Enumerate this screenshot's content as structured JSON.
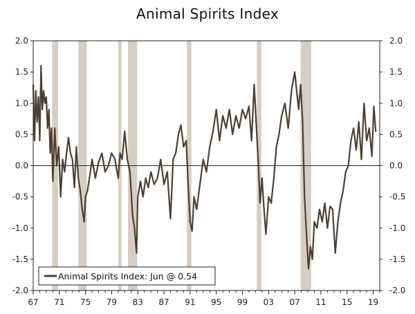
{
  "chart_data": {
    "type": "line",
    "title": "Animal Spirits Index",
    "xlabel": "",
    "ylabel": "",
    "xlim": [
      1967,
      2020
    ],
    "ylim": [
      -2.0,
      2.0
    ],
    "x_ticks": [
      "67",
      "71",
      "75",
      "79",
      "83",
      "87",
      "91",
      "95",
      "99",
      "03",
      "07",
      "11",
      "15",
      "19"
    ],
    "x_tick_years": [
      1967,
      1971,
      1975,
      1979,
      1983,
      1987,
      1991,
      1995,
      1999,
      2003,
      2007,
      2011,
      2015,
      2019
    ],
    "y_ticks": [
      "2.0",
      "1.5",
      "1.0",
      "0.5",
      "0.0",
      "-0.5",
      "-1.0",
      "-1.5",
      "-2.0"
    ],
    "y_tick_values": [
      2.0,
      1.5,
      1.0,
      0.5,
      0.0,
      -0.5,
      -1.0,
      -1.5,
      -2.0
    ],
    "grid": false,
    "zero_line": true,
    "legend_position": "bottom-left",
    "recession_color": "#d6cdc4",
    "line_color": "#4b3f34",
    "recessions": [
      {
        "start": 1969.9,
        "end": 1970.8
      },
      {
        "start": 1973.9,
        "end": 1975.2
      },
      {
        "start": 1980.0,
        "end": 1980.5
      },
      {
        "start": 1981.5,
        "end": 1982.9
      },
      {
        "start": 1990.5,
        "end": 1991.2
      },
      {
        "start": 2001.2,
        "end": 2001.9
      },
      {
        "start": 2007.9,
        "end": 2009.5
      }
    ],
    "series": [
      {
        "name": "Animal Spirits Index: Jun @ 0.54",
        "x": [
          1967.0,
          1967.2,
          1967.4,
          1967.6,
          1967.8,
          1968.0,
          1968.2,
          1968.4,
          1968.6,
          1968.8,
          1969.0,
          1969.2,
          1969.4,
          1969.6,
          1969.8,
          1970.0,
          1970.3,
          1970.6,
          1970.9,
          1971.2,
          1971.5,
          1971.8,
          1972.1,
          1972.4,
          1972.7,
          1973.0,
          1973.3,
          1973.6,
          1973.9,
          1974.2,
          1974.5,
          1974.8,
          1975.0,
          1975.3,
          1975.6,
          1976.0,
          1976.5,
          1977.0,
          1977.5,
          1978.0,
          1978.5,
          1979.0,
          1979.5,
          1980.0,
          1980.3,
          1980.6,
          1981.0,
          1981.4,
          1981.8,
          1982.2,
          1982.5,
          1982.8,
          1983.0,
          1983.4,
          1983.8,
          1984.2,
          1984.6,
          1985.0,
          1985.5,
          1986.0,
          1986.5,
          1987.0,
          1987.5,
          1988.0,
          1988.4,
          1988.8,
          1989.2,
          1989.6,
          1990.0,
          1990.4,
          1990.7,
          1991.0,
          1991.3,
          1991.6,
          1992.0,
          1992.5,
          1993.0,
          1993.5,
          1994.0,
          1994.5,
          1995.0,
          1995.5,
          1996.0,
          1996.5,
          1997.0,
          1997.5,
          1998.0,
          1998.5,
          1999.0,
          1999.5,
          2000.0,
          2000.4,
          2000.8,
          2001.1,
          2001.4,
          2001.7,
          2002.0,
          2002.3,
          2002.6,
          2003.0,
          2003.4,
          2003.8,
          2004.2,
          2004.6,
          2005.0,
          2005.5,
          2006.0,
          2006.5,
          2007.0,
          2007.3,
          2007.6,
          2007.9,
          2008.2,
          2008.5,
          2008.8,
          2009.1,
          2009.4,
          2009.7,
          2010.0,
          2010.4,
          2010.8,
          2011.2,
          2011.6,
          2012.0,
          2012.4,
          2012.8,
          2013.2,
          2013.6,
          2014.0,
          2014.4,
          2014.8,
          2015.2,
          2015.6,
          2016.0,
          2016.4,
          2016.8,
          2017.2,
          2017.6,
          2018.0,
          2018.4,
          2018.8,
          2019.1,
          2019.4
        ],
        "y": [
          1.3,
          0.4,
          1.2,
          0.7,
          1.1,
          0.4,
          1.6,
          0.9,
          1.2,
          1.0,
          1.1,
          0.6,
          0.9,
          0.2,
          0.6,
          -0.25,
          0.6,
          0.0,
          0.3,
          -0.5,
          0.1,
          -0.1,
          0.2,
          0.45,
          0.2,
          0.1,
          -0.35,
          0.3,
          -0.2,
          -0.4,
          -0.7,
          -0.9,
          -0.5,
          -0.4,
          -0.2,
          0.1,
          -0.2,
          0.05,
          0.2,
          -0.1,
          0.0,
          0.2,
          0.1,
          -0.2,
          0.2,
          0.1,
          0.55,
          0.1,
          -0.1,
          -0.8,
          -1.0,
          -1.4,
          -0.5,
          -0.25,
          -0.5,
          -0.2,
          -0.35,
          -0.1,
          -0.3,
          -0.2,
          0.1,
          -0.3,
          -0.1,
          -0.85,
          0.1,
          0.2,
          0.5,
          0.65,
          0.3,
          0.4,
          -0.3,
          -0.9,
          -1.05,
          -0.5,
          -0.7,
          -0.3,
          0.1,
          -0.1,
          0.3,
          0.55,
          0.9,
          0.4,
          0.8,
          0.6,
          0.9,
          0.5,
          0.8,
          0.6,
          0.9,
          0.75,
          0.95,
          0.4,
          1.3,
          0.7,
          0.1,
          -0.6,
          -0.2,
          -0.7,
          -1.1,
          -0.5,
          -0.6,
          -0.2,
          0.3,
          0.5,
          0.8,
          1.0,
          0.6,
          1.2,
          1.5,
          1.2,
          0.9,
          1.3,
          0.7,
          -0.5,
          -1.1,
          -1.65,
          -1.3,
          -1.5,
          -0.9,
          -1.0,
          -0.7,
          -0.9,
          -0.6,
          -1.0,
          -0.65,
          -0.7,
          -1.4,
          -0.9,
          -0.6,
          -0.4,
          -0.1,
          0.0,
          0.4,
          0.6,
          0.25,
          0.7,
          0.1,
          1.0,
          0.4,
          0.6,
          0.15,
          0.95,
          0.54
        ]
      }
    ]
  }
}
